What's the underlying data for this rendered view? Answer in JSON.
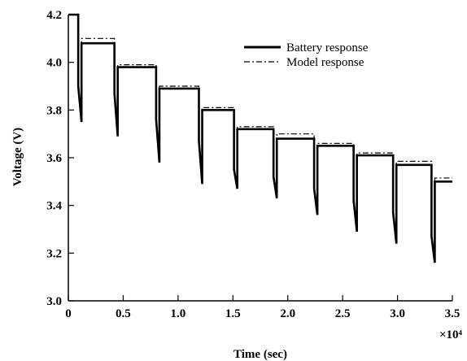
{
  "chart_data": {
    "type": "line",
    "title": "",
    "xlabel": "Time (sec)",
    "ylabel": "Voltage (V)",
    "x_multiplier_label": "×10⁴",
    "xlim": [
      0,
      3.5
    ],
    "ylim": [
      3.0,
      4.2
    ],
    "x_ticks": [
      0,
      0.5,
      1.0,
      1.5,
      2.0,
      2.5,
      3.0,
      3.5
    ],
    "x_tick_labels": [
      "0",
      "0.5",
      "1.0",
      "1.5",
      "2.0",
      "2.5",
      "3.0",
      "3.5"
    ],
    "y_ticks": [
      3.0,
      3.2,
      3.4,
      3.6,
      3.8,
      4.0,
      4.2
    ],
    "y_tick_labels": [
      "3.0",
      "3.2",
      "3.4",
      "3.6",
      "3.8",
      "4.0",
      "4.2"
    ],
    "grid": false,
    "legend_position": "top-right",
    "series": [
      {
        "name": "Battery response",
        "style": "solid",
        "color": "#000000",
        "x": [
          0.0,
          0.09,
          0.09,
          0.12,
          0.12,
          0.42,
          0.42,
          0.45,
          0.45,
          0.8,
          0.8,
          0.83,
          0.83,
          1.19,
          1.19,
          1.22,
          1.22,
          1.51,
          1.51,
          1.54,
          1.54,
          1.87,
          1.87,
          1.9,
          1.9,
          2.24,
          2.24,
          2.27,
          2.27,
          2.6,
          2.6,
          2.63,
          2.63,
          2.96,
          2.96,
          2.99,
          2.99,
          3.31,
          3.31,
          3.34,
          3.34,
          3.5
        ],
        "y": [
          4.2,
          4.2,
          3.9,
          3.75,
          4.08,
          4.08,
          3.87,
          3.69,
          3.98,
          3.98,
          3.76,
          3.58,
          3.89,
          3.89,
          3.67,
          3.49,
          3.8,
          3.8,
          3.55,
          3.47,
          3.72,
          3.72,
          3.52,
          3.43,
          3.68,
          3.68,
          3.47,
          3.36,
          3.65,
          3.65,
          3.42,
          3.29,
          3.61,
          3.61,
          3.37,
          3.24,
          3.57,
          3.57,
          3.27,
          3.16,
          3.5,
          3.5
        ]
      },
      {
        "name": "Model response",
        "style": "dash-dot",
        "color": "#000000",
        "x": [
          0.0,
          0.09,
          0.09,
          0.12,
          0.12,
          0.42,
          0.42,
          0.45,
          0.45,
          0.8,
          0.8,
          0.83,
          0.83,
          1.19,
          1.19,
          1.22,
          1.22,
          1.51,
          1.51,
          1.54,
          1.54,
          1.87,
          1.87,
          1.9,
          1.9,
          2.24,
          2.24,
          2.27,
          2.27,
          2.6,
          2.6,
          2.63,
          2.63,
          2.96,
          2.96,
          2.99,
          2.99,
          3.31,
          3.31,
          3.34,
          3.34,
          3.5
        ],
        "y": [
          4.2,
          4.2,
          3.91,
          3.77,
          4.1,
          4.1,
          3.88,
          3.71,
          3.99,
          3.99,
          3.77,
          3.6,
          3.9,
          3.9,
          3.68,
          3.51,
          3.81,
          3.81,
          3.56,
          3.49,
          3.73,
          3.73,
          3.53,
          3.45,
          3.7,
          3.7,
          3.48,
          3.38,
          3.66,
          3.66,
          3.43,
          3.31,
          3.62,
          3.62,
          3.38,
          3.26,
          3.585,
          3.585,
          3.28,
          3.18,
          3.515,
          3.515
        ]
      }
    ]
  }
}
